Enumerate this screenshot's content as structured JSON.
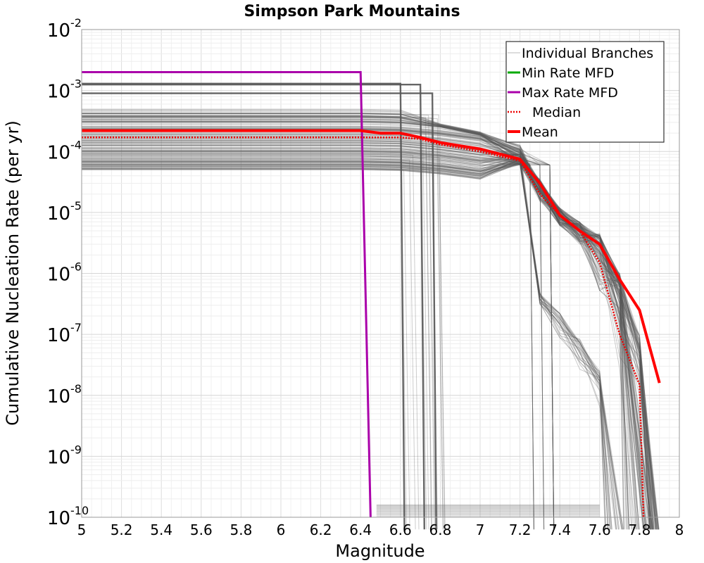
{
  "chart_data": {
    "type": "line",
    "title": "Simpson Park Mountains",
    "xlabel": "Magnitude",
    "ylabel": "Cumulative Nucleation Rate (per yr)",
    "xlim": [
      5,
      8
    ],
    "ylim_log10": [
      -10,
      -2
    ],
    "y_scale": "log",
    "grid": true,
    "legend_position": "top-right",
    "x_ticks": [
      "5",
      "5.2",
      "5.4",
      "5.6",
      "5.8",
      "6",
      "6.2",
      "6.4",
      "6.6",
      "6.8",
      "7",
      "7.2",
      "7.4",
      "7.6",
      "7.8",
      "8"
    ],
    "y_ticks": [
      {
        "base": "10",
        "exp": "-10",
        "value": 1e-10
      },
      {
        "base": "10",
        "exp": "-9",
        "value": 1e-09
      },
      {
        "base": "10",
        "exp": "-8",
        "value": 1e-08
      },
      {
        "base": "10",
        "exp": "-7",
        "value": 1e-07
      },
      {
        "base": "10",
        "exp": "-6",
        "value": 1e-06
      },
      {
        "base": "10",
        "exp": "-5",
        "value": 1e-05
      },
      {
        "base": "10",
        "exp": "-4",
        "value": 0.0001
      },
      {
        "base": "10",
        "exp": "-3",
        "value": 0.001
      },
      {
        "base": "10",
        "exp": "-2",
        "value": 0.01
      }
    ],
    "legend": [
      {
        "label": "Individual Branches",
        "color": "#bbbbbb",
        "style": "solid-thin"
      },
      {
        "label": "Min Rate MFD",
        "color": "#00aa00",
        "style": "solid"
      },
      {
        "label": "Max Rate MFD",
        "color": "#aa00aa",
        "style": "solid"
      },
      {
        "label": "Median",
        "color": "#ee0000",
        "style": "dotted"
      },
      {
        "label": "Mean",
        "color": "#ff0000",
        "style": "solid-thick"
      }
    ],
    "series": [
      {
        "name": "Max Rate MFD",
        "color": "#aa00aa",
        "x": [
          5.0,
          6.4,
          6.45
        ],
        "y": [
          0.002,
          0.002,
          1e-10
        ]
      },
      {
        "name": "Median",
        "color": "#ee0000",
        "x": [
          5.0,
          6.4,
          6.5,
          6.6,
          6.7,
          6.8,
          7.0,
          7.2,
          7.3,
          7.4,
          7.5,
          7.6,
          7.7,
          7.8,
          7.82
        ],
        "y": [
          0.00017,
          0.00017,
          0.00017,
          0.00017,
          0.00016,
          0.00013,
          0.0001,
          7e-05,
          2e-05,
          9e-06,
          5e-06,
          1.5e-06,
          1e-07,
          1.5e-08,
          1e-10
        ]
      },
      {
        "name": "Mean",
        "color": "#ff0000",
        "x": [
          5.0,
          6.4,
          6.5,
          6.6,
          6.7,
          6.8,
          7.0,
          7.2,
          7.3,
          7.4,
          7.5,
          7.6,
          7.7,
          7.8,
          7.9
        ],
        "y": [
          0.00022,
          0.00022,
          0.0002,
          0.0002,
          0.00017,
          0.00014,
          0.00011,
          7.5e-05,
          3e-05,
          9e-06,
          5e-06,
          3e-06,
          8e-07,
          2.5e-07,
          1.6e-08
        ]
      }
    ],
    "branch_band": {
      "color": "#555555",
      "rate_range_low_mag": [
        5e-05,
        0.0005
      ],
      "high_rate_branches": [
        0.0013,
        0.00125,
        0.0009
      ],
      "high_rate_cutoffs": [
        6.62,
        6.72,
        6.78
      ],
      "tail_cutoffs": [
        7.25,
        7.3,
        7.35,
        7.62,
        7.7,
        7.75,
        7.85,
        7.9
      ]
    }
  }
}
